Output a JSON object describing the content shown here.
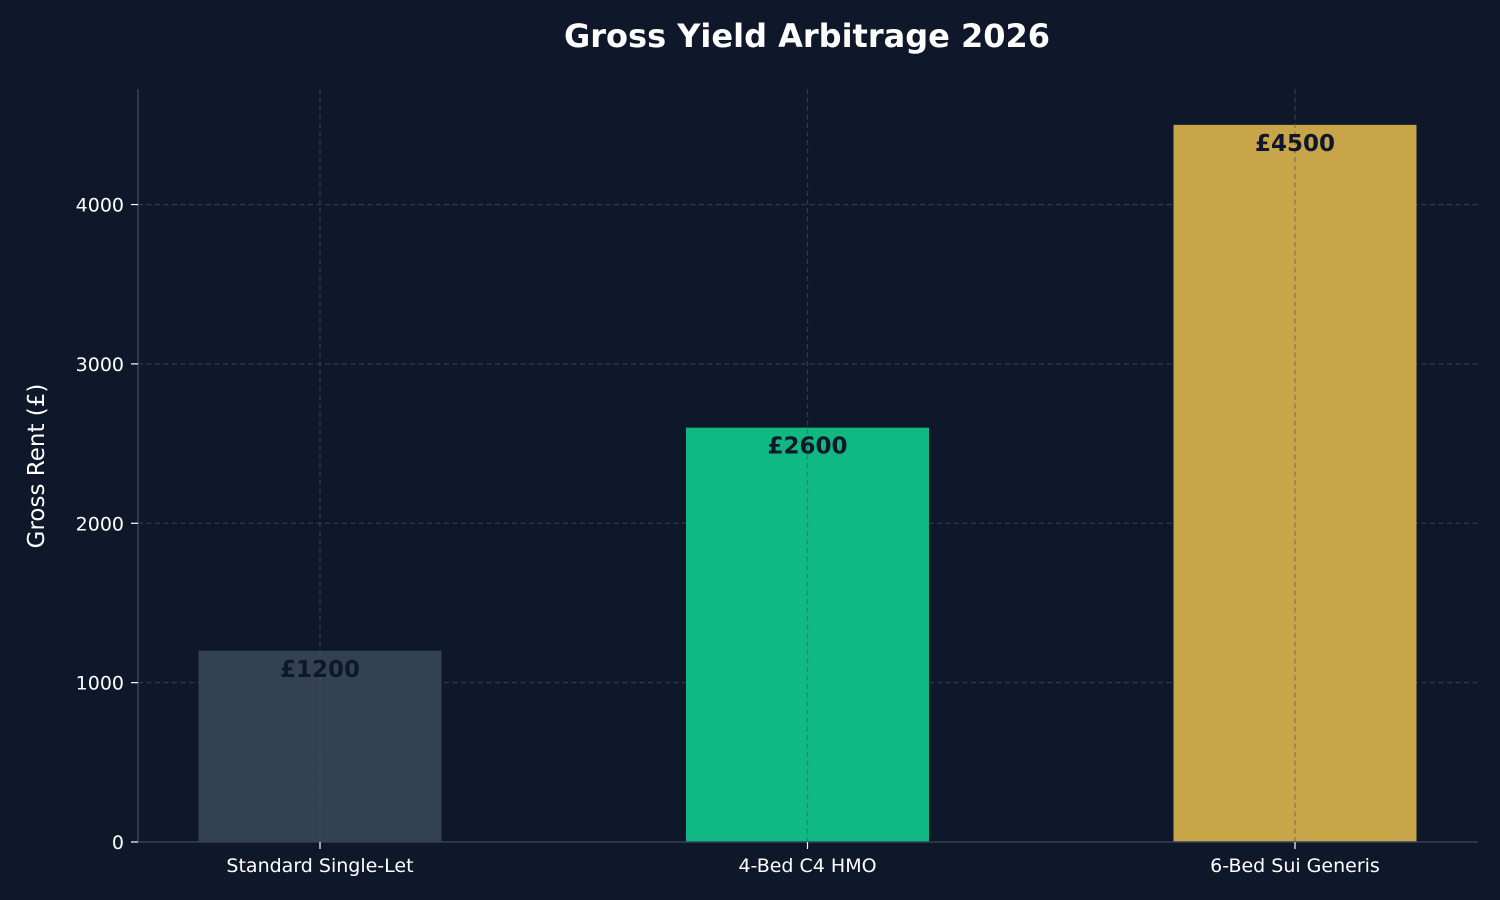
{
  "chart_data": {
    "type": "bar",
    "title": "Gross Yield Arbitrage 2026",
    "xlabel": "",
    "ylabel": "Gross Rent (£)",
    "categories": [
      "Standard Single-Let",
      "4-Bed C4 HMO",
      "6-Bed Sui Generis"
    ],
    "values": [
      1200,
      2600,
      4500
    ],
    "data_labels": [
      "£1200",
      "£2600",
      "£4500"
    ],
    "colors": [
      "#334155",
      "#10b981",
      "#c9a54a"
    ],
    "ylim": [
      0,
      4725
    ],
    "yticks": [
      0,
      1000,
      2000,
      3000,
      4000
    ],
    "grid": true,
    "legend": "none"
  },
  "style": {
    "background": "#0f172a",
    "axis_color": "#334155",
    "grid_color": "#475569",
    "text_color": "#ffffff",
    "data_label_color": "#0f172a"
  }
}
